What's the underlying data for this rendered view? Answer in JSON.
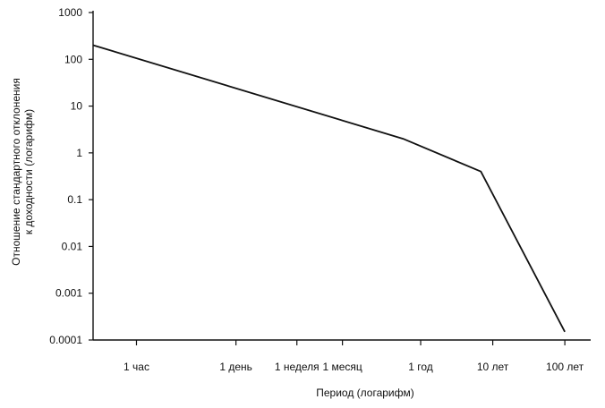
{
  "chart_data": {
    "type": "line",
    "title": "",
    "xlabel": "Период (логарифм)",
    "ylabel_line1": "Отношение стандартного отклонения",
    "ylabel_line2": "к доходности (логарифм)",
    "y_scale": "log",
    "ylim": [
      0.0001,
      1000
    ],
    "y_ticks": [
      1000,
      100,
      10,
      1,
      0.1,
      0.01,
      0.001,
      0.0001
    ],
    "y_tick_labels": [
      "1000",
      "100",
      "10",
      "1",
      "0.1",
      "0.01",
      "0.001",
      "0.0001"
    ],
    "x_scale": "log",
    "x_tick_labels": [
      "1 час",
      "1 день",
      "1 неделя",
      "1 месяц",
      "1 год",
      "10 лет",
      "100 лет"
    ],
    "x_tick_values_hours": [
      1,
      24,
      168,
      720,
      8760,
      87600,
      876000
    ],
    "xlim_hours": [
      0.25,
      2000000
    ],
    "series": [
      {
        "x_hours": [
          0.25,
          5000,
          60000,
          876000
        ],
        "y": [
          200,
          2,
          0.4,
          0.00015
        ]
      }
    ],
    "grid": false,
    "legend": "none",
    "colors": {
      "line": "#111111",
      "axis": "#111111",
      "text": "#111111"
    }
  }
}
